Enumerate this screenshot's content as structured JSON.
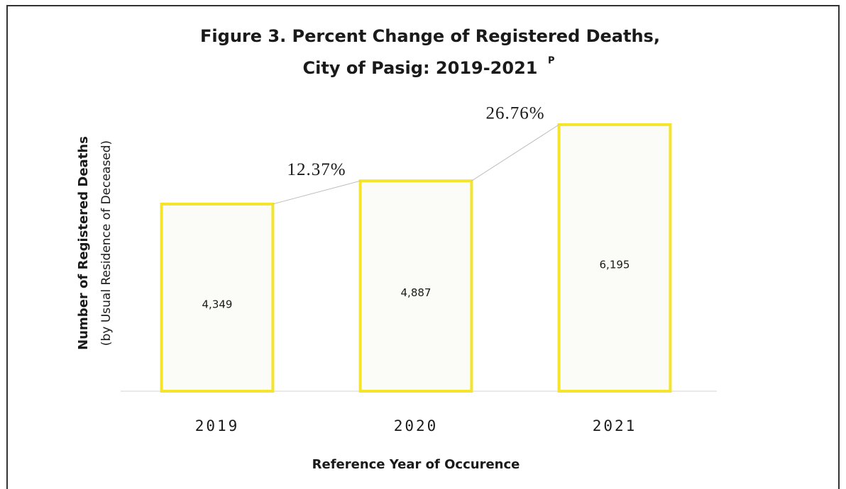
{
  "chart_data": {
    "type": "bar",
    "title": [
      "Figure 3. Percent Change of Registered Deaths,",
      "City of Pasig: 2019-2021"
    ],
    "title_superscript": "P",
    "ylabel": [
      "Number of Registered Deaths",
      "(by Usual Residence of Deceased)"
    ],
    "xlabel": "Reference Year of Occurence",
    "categories": [
      "2019",
      "2020",
      "2021"
    ],
    "values": [
      4349,
      4887,
      6195
    ],
    "value_labels": [
      "4,349",
      "4,887",
      "6,195"
    ],
    "percent_changes": [
      12.37,
      26.76
    ],
    "percent_change_labels": [
      "12.37%",
      "26.76%"
    ],
    "color": "#f4e42c",
    "ylim": [
      0,
      7000
    ]
  }
}
